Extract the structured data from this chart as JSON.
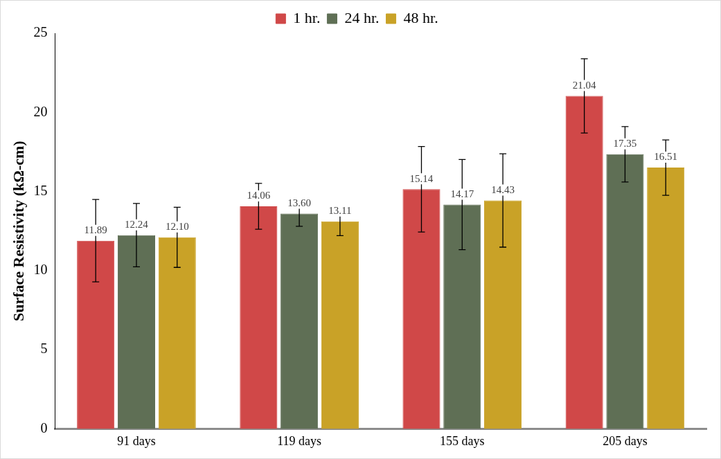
{
  "chart_data": {
    "type": "bar",
    "ylabel": "Surface Resistivity (kΩ-cm)",
    "categories": [
      "91 days",
      "119 days",
      "155 days",
      "205 days"
    ],
    "series": [
      {
        "name": "1 hr.",
        "color": "#d04848",
        "values": [
          11.89,
          14.06,
          15.14,
          21.04
        ],
        "errors": [
          2.6,
          1.45,
          2.7,
          2.35
        ],
        "value_labels": [
          "11.89",
          "14.06",
          "15.14",
          "21.04"
        ]
      },
      {
        "name": "24 hr.",
        "color": "#5f6f55",
        "values": [
          12.24,
          13.6,
          14.17,
          17.35
        ],
        "errors": [
          2.0,
          0.8,
          2.85,
          1.75
        ],
        "value_labels": [
          "12.24",
          "13.60",
          "14.17",
          "17.35"
        ]
      },
      {
        "name": "48 hr.",
        "color": "#c9a227",
        "values": [
          12.1,
          13.11,
          14.43,
          16.51
        ],
        "errors": [
          1.9,
          0.9,
          2.95,
          1.75
        ],
        "value_labels": [
          "12.10",
          "13.11",
          "14.43",
          "16.51"
        ]
      }
    ],
    "ylim": [
      0,
      25
    ],
    "yticks": [
      0,
      5,
      10,
      15,
      20,
      25
    ],
    "grid": false,
    "legend": "top"
  }
}
